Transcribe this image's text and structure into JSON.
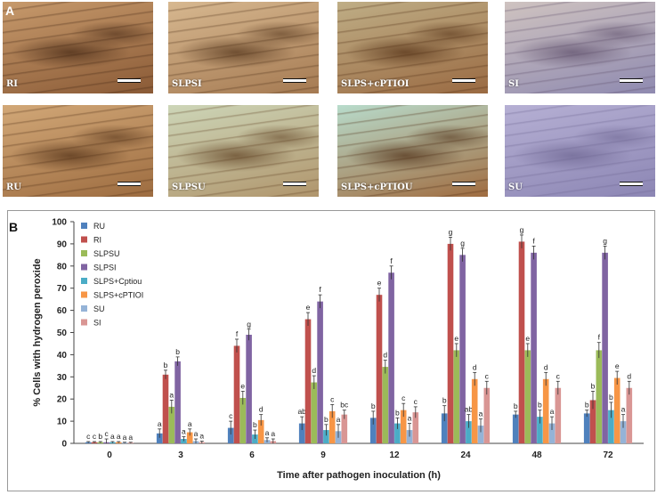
{
  "panel_a": {
    "label": "A",
    "tiles": [
      {
        "label": "RI",
        "bg1": "#c79a6c",
        "bg2": "#8a5a36",
        "accent": "#3e2210"
      },
      {
        "label": "SLPSI",
        "bg1": "#d7b890",
        "bg2": "#a57a52",
        "accent": "#4a2c14"
      },
      {
        "label": "SLPS+cPTIOI",
        "bg1": "#bfae86",
        "bg2": "#9a6a42",
        "accent": "#4d2a10"
      },
      {
        "label": "SI",
        "bg1": "#cfc3c0",
        "bg2": "#8f8ab0",
        "accent": "#5a4a66"
      },
      {
        "label": "RU",
        "bg1": "#d2a878",
        "bg2": "#9d6c40",
        "accent": "#4a2a12"
      },
      {
        "label": "SLPSU",
        "bg1": "#cdd6b8",
        "bg2": "#b0956c",
        "accent": "#5a3a1c"
      },
      {
        "label": "SLPS+cPTIOU",
        "bg1": "#b8dccc",
        "bg2": "#a06c40",
        "accent": "#4a2810"
      },
      {
        "label": "SU",
        "bg1": "#b6b0d4",
        "bg2": "#8c86b4",
        "accent": "#6a628e"
      }
    ]
  },
  "panel_b": {
    "label": "B"
  },
  "chart_data": {
    "type": "bar",
    "xlabel": "Time after pathogen inoculation (h)",
    "ylabel": "% Cells with hydrogen peroxide",
    "ylim": [
      0,
      100
    ],
    "yticks": [
      "0",
      "10",
      "20",
      "30",
      "40",
      "50",
      "60",
      "70",
      "80",
      "90",
      "100"
    ],
    "categories": [
      "0",
      "3",
      "6",
      "9",
      "12",
      "24",
      "48",
      "72"
    ],
    "legend_position": "top-left",
    "series": [
      {
        "name": "RU",
        "color": "#4f81bd",
        "values": [
          0.5,
          4.5,
          7,
          9,
          11.5,
          13.5,
          13,
          13.5
        ],
        "errors": [
          0.3,
          2,
          3,
          3,
          3,
          3.5,
          1.5,
          1.5
        ],
        "letters": [
          "c",
          "a",
          "c",
          "ab",
          "b",
          "b",
          "b",
          "b"
        ]
      },
      {
        "name": "RI",
        "color": "#c0504d",
        "values": [
          0.5,
          31,
          44,
          56,
          67,
          90,
          91,
          19.5
        ],
        "errors": [
          0.3,
          2,
          3,
          3,
          3,
          3,
          3,
          4
        ],
        "letters": [
          "c",
          "b",
          "f",
          "e",
          "e",
          "g",
          "g",
          "b"
        ]
      },
      {
        "name": "SLPSU",
        "color": "#9bbb59",
        "values": [
          0.5,
          16.5,
          20.5,
          27.5,
          34.5,
          42,
          42,
          42
        ],
        "errors": [
          0.3,
          3,
          3,
          3,
          3,
          3,
          3,
          3.5
        ],
        "letters": [
          "b",
          "a",
          "e",
          "d",
          "d",
          "e",
          "e",
          "f"
        ]
      },
      {
        "name": "SLPSI",
        "color": "#8064a2",
        "values": [
          0.5,
          37,
          49,
          64,
          77,
          85,
          86,
          86
        ],
        "errors": [
          1.5,
          2,
          2.5,
          3,
          3,
          3,
          3,
          3
        ],
        "letters": [
          "c",
          "b",
          "g",
          "f",
          "f",
          "g",
          "f",
          "g"
        ]
      },
      {
        "name": "SLPS+Cptiou",
        "color": "#4bacc6",
        "values": [
          0.5,
          2,
          4,
          6,
          9,
          10,
          12,
          15
        ],
        "errors": [
          0.3,
          1,
          2,
          2.5,
          2.5,
          3,
          3,
          3.5
        ],
        "letters": [
          "a",
          "a",
          "b",
          "b",
          "b",
          "ab",
          "b",
          "b"
        ]
      },
      {
        "name": "SLPS+cPTIOI",
        "color": "#f79646",
        "values": [
          0.5,
          5,
          10.5,
          14.5,
          15,
          29,
          29,
          29.5
        ],
        "errors": [
          0.3,
          1.5,
          2.5,
          3,
          3,
          3,
          3,
          3
        ],
        "letters": [
          "a",
          "a",
          "d",
          "c",
          "c",
          "d",
          "d",
          "e"
        ]
      },
      {
        "name": "SU",
        "color": "#95b3d7",
        "values": [
          0.3,
          1,
          1.5,
          5.5,
          6,
          8,
          9,
          10
        ],
        "errors": [
          0.2,
          1,
          1,
          3,
          3,
          3,
          3,
          3
        ],
        "letters": [
          "a",
          "a",
          "a",
          "a",
          "a",
          "a",
          "a",
          "a"
        ]
      },
      {
        "name": "SI",
        "color": "#d99694",
        "values": [
          0.3,
          0.5,
          1,
          13,
          14,
          25,
          25,
          25
        ],
        "errors": [
          0.2,
          0.5,
          1,
          2,
          2.5,
          3,
          3,
          3
        ],
        "letters": [
          "a",
          "a",
          "a",
          "bc",
          "c",
          "c",
          "c",
          "d"
        ]
      }
    ]
  }
}
